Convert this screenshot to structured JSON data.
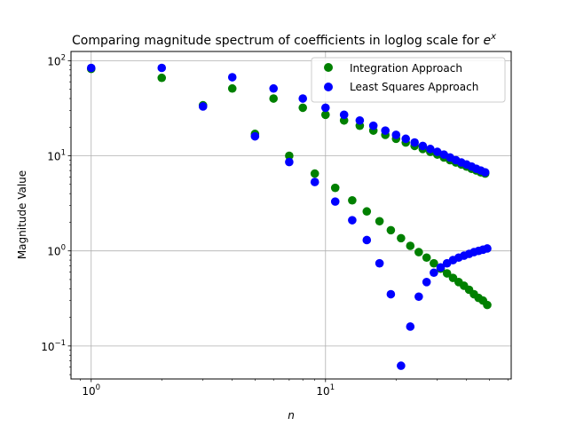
{
  "chart_data": {
    "type": "scatter",
    "title": "Comparing magnitude spectrum of coefficients in loglog scale for ",
    "title_math": {
      "base": "e",
      "sup": "x"
    },
    "xlabel": "n",
    "ylabel": "Magnitude Value",
    "xscale": "log",
    "yscale": "log",
    "xlim": [
      0.82,
      62
    ],
    "ylim": [
      0.045,
      125
    ],
    "x_ticks": [
      {
        "value": 1,
        "base": "10",
        "exp": "0"
      },
      {
        "value": 10,
        "base": "10",
        "exp": "1"
      }
    ],
    "y_ticks": [
      {
        "value": 0.1,
        "base": "10",
        "exp": "−1"
      },
      {
        "value": 1,
        "base": "10",
        "exp": "0"
      },
      {
        "value": 10,
        "base": "10",
        "exp": "1"
      },
      {
        "value": 100,
        "base": "10",
        "exp": "2"
      }
    ],
    "grid": true,
    "legend_position": "top-right",
    "series": [
      {
        "name": "Integration Approach",
        "color": "#008000",
        "points": [
          [
            1,
            82
          ],
          [
            2,
            66
          ],
          [
            3,
            34
          ],
          [
            4,
            51
          ],
          [
            5,
            17
          ],
          [
            6,
            40
          ],
          [
            7,
            10
          ],
          [
            8,
            32
          ],
          [
            9,
            6.5
          ],
          [
            10,
            27
          ],
          [
            11,
            4.6
          ],
          [
            12,
            23.5
          ],
          [
            13,
            3.4
          ],
          [
            14,
            20.7
          ],
          [
            15,
            2.6
          ],
          [
            16,
            18.4
          ],
          [
            17,
            2.05
          ],
          [
            18,
            16.6
          ],
          [
            19,
            1.65
          ],
          [
            20,
            15.1
          ],
          [
            21,
            1.36
          ],
          [
            22,
            13.8
          ],
          [
            23,
            1.13
          ],
          [
            24,
            12.7
          ],
          [
            25,
            0.97
          ],
          [
            26,
            11.8
          ],
          [
            27,
            0.85
          ],
          [
            28,
            11.0
          ],
          [
            29,
            0.74
          ],
          [
            30,
            10.3
          ],
          [
            31,
            0.65
          ],
          [
            32,
            9.6
          ],
          [
            33,
            0.58
          ],
          [
            34,
            9.0
          ],
          [
            35,
            0.52
          ],
          [
            36,
            8.5
          ],
          [
            37,
            0.47
          ],
          [
            38,
            8.1
          ],
          [
            39,
            0.43
          ],
          [
            40,
            7.7
          ],
          [
            41,
            0.39
          ],
          [
            42,
            7.3
          ],
          [
            43,
            0.35
          ],
          [
            44,
            7.0
          ],
          [
            45,
            0.32
          ],
          [
            46,
            6.7
          ],
          [
            47,
            0.3
          ],
          [
            48,
            6.5
          ],
          [
            49,
            0.27
          ]
        ]
      },
      {
        "name": "Least Squares Approach",
        "color": "#0000ff",
        "points": [
          [
            1,
            84
          ],
          [
            2,
            84
          ],
          [
            3,
            33
          ],
          [
            4,
            67
          ],
          [
            5,
            16
          ],
          [
            6,
            51
          ],
          [
            7,
            8.6
          ],
          [
            8,
            40
          ],
          [
            9,
            5.3
          ],
          [
            10,
            32
          ],
          [
            11,
            3.3
          ],
          [
            12,
            27
          ],
          [
            13,
            2.1
          ],
          [
            14,
            23.5
          ],
          [
            15,
            1.3
          ],
          [
            16,
            20.7
          ],
          [
            17,
            0.74
          ],
          [
            18,
            18.4
          ],
          [
            19,
            0.35
          ],
          [
            20,
            16.6
          ],
          [
            21,
            0.062
          ],
          [
            22,
            15.1
          ],
          [
            23,
            0.16
          ],
          [
            24,
            13.8
          ],
          [
            25,
            0.33
          ],
          [
            26,
            12.7
          ],
          [
            27,
            0.47
          ],
          [
            28,
            11.8
          ],
          [
            29,
            0.59
          ],
          [
            30,
            11.0
          ],
          [
            31,
            0.67
          ],
          [
            32,
            10.3
          ],
          [
            33,
            0.74
          ],
          [
            34,
            9.6
          ],
          [
            35,
            0.8
          ],
          [
            36,
            9.0
          ],
          [
            37,
            0.85
          ],
          [
            38,
            8.5
          ],
          [
            39,
            0.89
          ],
          [
            40,
            8.1
          ],
          [
            41,
            0.93
          ],
          [
            42,
            7.7
          ],
          [
            43,
            0.97
          ],
          [
            44,
            7.3
          ],
          [
            45,
            1.0
          ],
          [
            46,
            7.0
          ],
          [
            47,
            1.03
          ],
          [
            48,
            6.7
          ],
          [
            49,
            1.06
          ]
        ]
      }
    ]
  }
}
